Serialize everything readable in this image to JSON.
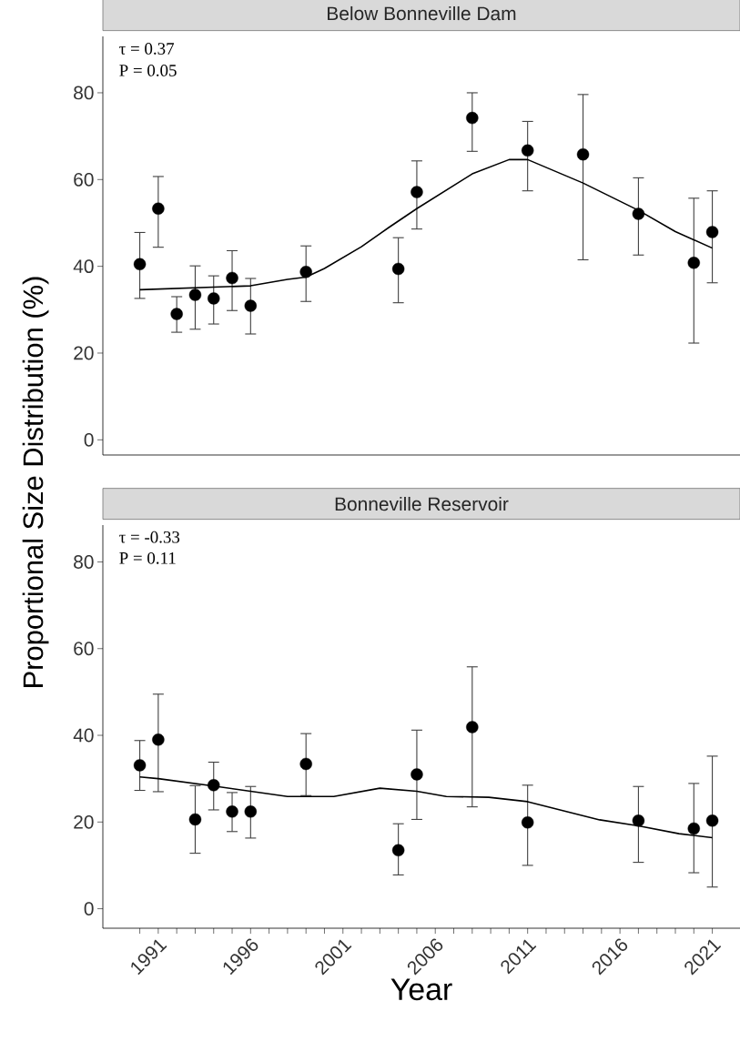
{
  "chart_data": [
    {
      "type": "scatter",
      "title": "Below Bonneville Dam",
      "ylabel": "Proportional Size Distribution (%)",
      "marker": "circle",
      "tick_labels": "y",
      "xlim": [
        1988,
        2022.5
      ],
      "ylim": [
        -3.5,
        93
      ],
      "yticks": [
        0,
        20,
        40,
        60,
        80
      ],
      "annotations": [
        "τ = 0.37",
        "P = 0.05"
      ],
      "series": [
        {
          "color": "#000000",
          "x": [
            1990,
            1991,
            1992,
            1993,
            1994,
            1995,
            1996,
            1999,
            2004,
            2005,
            2008,
            2011,
            2014,
            2017,
            2020,
            2021
          ],
          "values": [
            40.5,
            53.3,
            29.0,
            33.4,
            32.6,
            37.3,
            30.9,
            38.7,
            39.4,
            57.1,
            74.2,
            66.7,
            65.8,
            52.1,
            40.8,
            47.9
          ],
          "errors": [
            [
              32.6,
              47.8
            ],
            [
              44.4,
              60.7
            ],
            [
              24.8,
              33.0
            ],
            [
              25.5,
              40.1
            ],
            [
              26.7,
              37.8
            ],
            [
              29.8,
              43.6
            ],
            [
              24.4,
              37.2
            ],
            [
              31.9,
              44.7
            ],
            [
              31.6,
              46.6
            ],
            [
              48.6,
              64.3
            ],
            [
              66.5,
              80.0
            ],
            [
              57.4,
              73.4
            ],
            [
              41.5,
              79.6
            ],
            [
              42.6,
              60.4
            ],
            [
              22.3,
              55.7
            ],
            [
              36.2,
              57.4
            ]
          ]
        },
        {
          "type": "line",
          "marker": "none",
          "color": "#000000",
          "x": [
            1990,
            1996,
            1998,
            1999,
            2000,
            2002,
            2003.5,
            2005,
            2008,
            2010,
            2011,
            2014,
            2017,
            2019,
            2021
          ],
          "values": [
            34.6,
            35.5,
            37.0,
            37.5,
            39.5,
            44.5,
            49.0,
            53.3,
            61.3,
            64.6,
            64.6,
            59.2,
            52.9,
            48.0,
            44.2
          ]
        }
      ]
    },
    {
      "type": "scatter",
      "title": "Bonneville Reservoir",
      "xlabel": "Year",
      "marker": "circle",
      "xlim": [
        1988,
        2022.5
      ],
      "ylim": [
        -4.5,
        88.5
      ],
      "yticks": [
        0,
        20,
        40,
        60,
        80
      ],
      "xticks": [
        {
          "value": 1990,
          "label": null
        },
        1991,
        {
          "value": 1992,
          "label": null
        },
        {
          "value": 1993,
          "label": null
        },
        {
          "value": 1994,
          "label": null
        },
        {
          "value": 1995,
          "label": null
        },
        1996,
        {
          "value": 1997,
          "label": null
        },
        {
          "value": 1998,
          "label": null
        },
        {
          "value": 1999,
          "label": null
        },
        {
          "value": 2000,
          "label": null
        },
        2001,
        {
          "value": 2002,
          "label": null
        },
        {
          "value": 2003,
          "label": null
        },
        {
          "value": 2004,
          "label": null
        },
        {
          "value": 2005,
          "label": null
        },
        2006,
        {
          "value": 2007,
          "label": null
        },
        {
          "value": 2008,
          "label": null
        },
        {
          "value": 2009,
          "label": null
        },
        {
          "value": 2010,
          "label": null
        },
        2011,
        {
          "value": 2012,
          "label": null
        },
        {
          "value": 2013,
          "label": null
        },
        {
          "value": 2014,
          "label": null
        },
        {
          "value": 2015,
          "label": null
        },
        2016,
        {
          "value": 2017,
          "label": null
        },
        {
          "value": 2018,
          "label": null
        },
        {
          "value": 2019,
          "label": null
        },
        {
          "value": 2020,
          "label": null
        },
        2021
      ],
      "annotations": [
        "τ = -0.33",
        "P = 0.11"
      ],
      "series": [
        {
          "color": "#000000",
          "x": [
            1990,
            1991,
            1993,
            1994,
            1995,
            1996,
            1999,
            2004,
            2005,
            2008,
            2011,
            2017,
            2020,
            2021
          ],
          "values": [
            33.1,
            39.0,
            20.6,
            28.5,
            22.4,
            22.4,
            33.4,
            13.5,
            31.0,
            41.9,
            19.9,
            20.3,
            18.5,
            20.3
          ],
          "errors": [
            [
              27.3,
              38.8
            ],
            [
              27.0,
              49.5
            ],
            [
              12.8,
              28.4
            ],
            [
              22.8,
              33.8
            ],
            [
              17.8,
              26.8
            ],
            [
              16.3,
              28.2
            ],
            [
              26.1,
              40.4
            ],
            [
              7.8,
              19.6
            ],
            [
              20.6,
              41.2
            ],
            [
              23.5,
              55.8
            ],
            [
              10.0,
              28.5
            ],
            [
              10.7,
              28.2
            ],
            [
              8.3,
              28.9
            ],
            [
              5.0,
              35.2
            ]
          ]
        },
        {
          "type": "line",
          "marker": "none",
          "color": "#000000",
          "x": [
            1990,
            1991,
            1994,
            1996,
            1998,
            2000.5,
            2003,
            2005,
            2006.6,
            2008.9,
            2011,
            2014.9,
            2017,
            2019.2,
            2021
          ],
          "values": [
            30.4,
            30.0,
            28.3,
            27.1,
            25.9,
            25.9,
            27.8,
            27.1,
            25.9,
            25.7,
            24.7,
            20.5,
            19.1,
            17.3,
            16.4
          ]
        }
      ]
    }
  ]
}
